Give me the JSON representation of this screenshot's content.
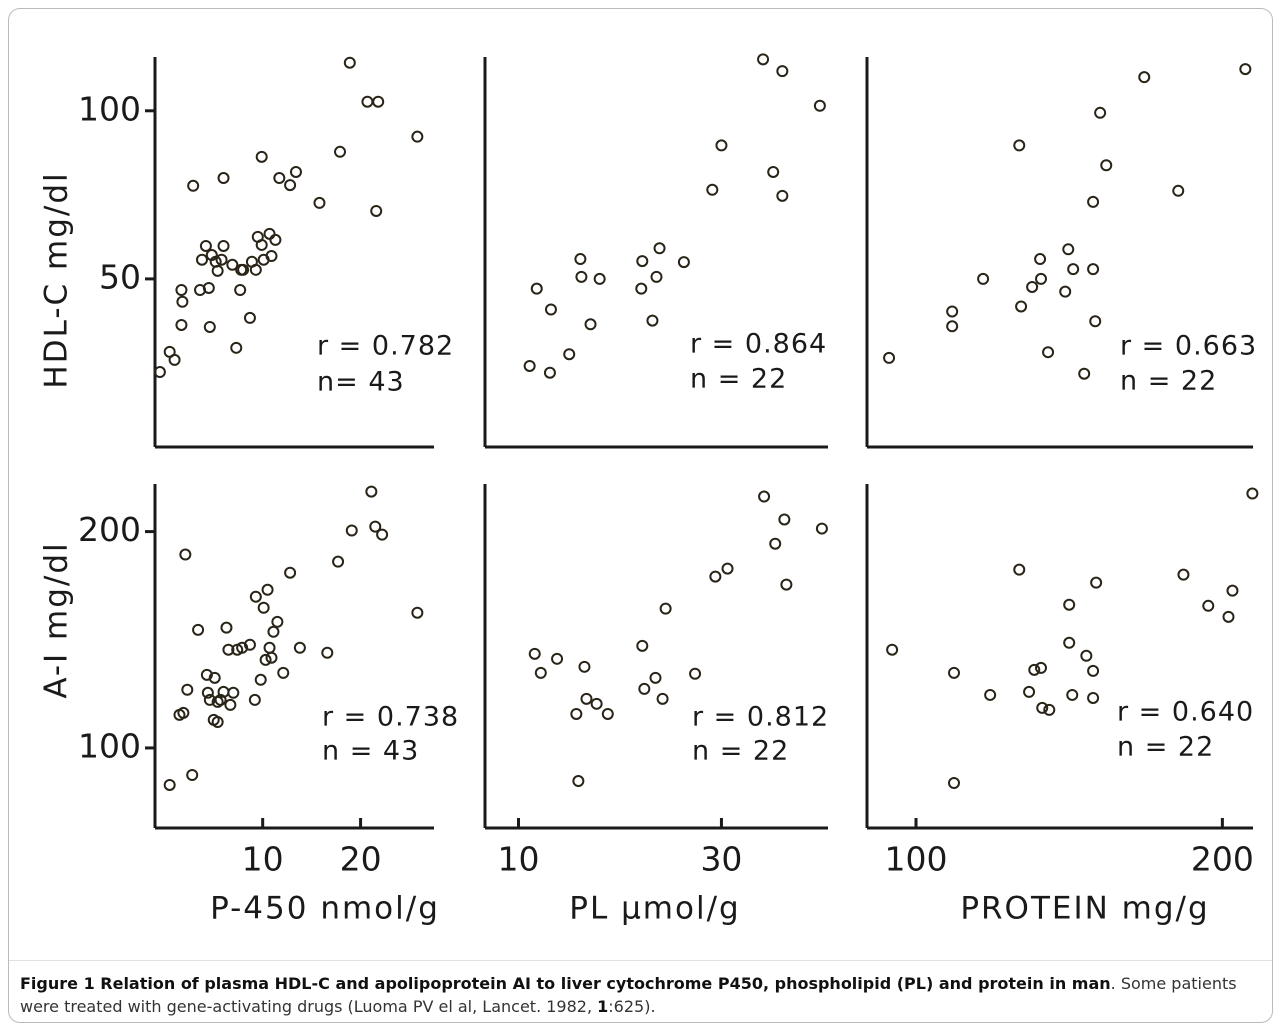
{
  "chart_data": [
    {
      "type": "scatter",
      "ylabel": "HDL-C  mg/dl",
      "color": "#2a2418",
      "x": [
        -0.5,
        0.5,
        1,
        1.7,
        1.8,
        1.7,
        2.9,
        3.6,
        3.8,
        4.2,
        4.5,
        4.8,
        5.2,
        4.6,
        5.4,
        6,
        6,
        6.9,
        7.3,
        7.7,
        8,
        8.7,
        8.9,
        9.3,
        9.9,
        9.5,
        9.9,
        10.1,
        10.7,
        10.9,
        11.3,
        11.7,
        12.8,
        13.4,
        15.8,
        17.9,
        18.9,
        20.7,
        21.8,
        21.6,
        25.8,
        5.8,
        7.8
      ],
      "values": [
        22.3,
        28.3,
        25.9,
        46.7,
        43.2,
        36.3,
        77.7,
        46.7,
        55.7,
        59.8,
        47.3,
        57.1,
        55.1,
        35.7,
        52.4,
        80,
        59.8,
        54.2,
        29.5,
        46.7,
        52.7,
        38.4,
        55.1,
        52.7,
        86.3,
        62.5,
        60.1,
        55.7,
        63.4,
        56.8,
        61.6,
        80,
        77.9,
        81.8,
        72.6,
        87.8,
        114.3,
        102.7,
        102.7,
        70.2,
        92.3,
        55.7,
        52.7
      ],
      "xlim": [
        -1,
        27.5
      ],
      "ylim": [
        0,
        116
      ],
      "yticks": [
        50,
        100
      ],
      "annotations": [
        "r = 0.782",
        "n= 43"
      ]
    },
    {
      "type": "scatter",
      "color": "#2a2418",
      "x": [
        11.8,
        11.1,
        13.1,
        13.2,
        15,
        16.1,
        16.2,
        17.1,
        18,
        22.2,
        22.1,
        23.2,
        23.6,
        23.9,
        26.3,
        29.1,
        30,
        34.1,
        36,
        35.1,
        36,
        39.7
      ],
      "values": [
        47.1,
        24.1,
        22.1,
        40.9,
        27.6,
        55.9,
        50.6,
        36.5,
        50,
        55.3,
        47.1,
        37.6,
        50.6,
        59.1,
        55,
        76.5,
        89.7,
        115.3,
        111.8,
        81.8,
        74.7,
        101.5
      ],
      "xlim": [
        6.7,
        40.5
      ],
      "ylim": [
        0,
        116
      ],
      "annotations": [
        "r = 0.864",
        "n = 22"
      ]
    },
    {
      "type": "scatter",
      "color": "#2a2418",
      "x": [
        91.2,
        111.8,
        111.8,
        121.9,
        133.7,
        134.3,
        137.9,
        140.5,
        140.8,
        143.1,
        148.7,
        149.7,
        151.3,
        154.9,
        157.8,
        157.8,
        158.5,
        160.1,
        162.1,
        174.5,
        185.6,
        207.5
      ],
      "values": [
        26.5,
        40.3,
        35.9,
        50,
        89.7,
        41.8,
        47.6,
        55.9,
        50,
        28.2,
        46.2,
        58.8,
        52.9,
        21.8,
        52.9,
        72.9,
        37.4,
        99.4,
        83.8,
        110,
        76.2,
        112.4
      ],
      "xlim": [
        84,
        210
      ],
      "ylim": [
        0,
        116
      ],
      "annotations": [
        "r = 0.663",
        "n = 22"
      ]
    },
    {
      "type": "scatter",
      "ylabel": "A-I  mg/dl",
      "xlabel": "P-450  nmol/g",
      "color": "#2a2418",
      "x": [
        0.5,
        1.5,
        1.9,
        2.1,
        2.3,
        2.8,
        3.4,
        4.3,
        4.4,
        4.6,
        5,
        5.1,
        5.4,
        5.4,
        5.7,
        6,
        6.3,
        6.5,
        6.7,
        7,
        7.4,
        7.9,
        8.7,
        9.2,
        9.3,
        9.8,
        10.1,
        10.3,
        10.5,
        10.7,
        10.9,
        11.1,
        11.5,
        12.1,
        12.8,
        13.8,
        16.6,
        17.7,
        19.1,
        21.1,
        21.5,
        22.2,
        25.8
      ],
      "values": [
        82.9,
        115.3,
        116.2,
        189.4,
        126.9,
        87.5,
        154.6,
        133.8,
        125.5,
        122.2,
        113,
        132.4,
        112,
        121.3,
        122.2,
        125.9,
        155.6,
        145.4,
        119.9,
        125.5,
        145.4,
        146.3,
        147.7,
        122.2,
        169.9,
        131.5,
        164.8,
        140.7,
        173.1,
        146.3,
        141.7,
        153.7,
        158.3,
        134.7,
        181,
        146.3,
        144,
        186.1,
        200.5,
        218.5,
        202.3,
        198.6,
        162.5
      ],
      "xlim": [
        -1,
        27.5
      ],
      "ylim": [
        63,
        222
      ],
      "yticks": [
        100,
        200
      ],
      "xticks": [
        10,
        20
      ],
      "annotations": [
        "r = 0.738",
        "n = 43"
      ]
    },
    {
      "type": "scatter",
      "xlabel": "PL  µmol/g",
      "color": "#2a2418",
      "x": [
        11.6,
        12.2,
        13.8,
        16.5,
        15.7,
        16.7,
        17.7,
        18.8,
        15.9,
        22.2,
        22.4,
        23.5,
        24.2,
        24.5,
        27.4,
        29.4,
        30.6,
        34.2,
        36.2,
        35.3,
        36.4,
        39.9
      ],
      "values": [
        143.5,
        134.7,
        141.2,
        137.5,
        115.7,
        122.7,
        120.4,
        115.7,
        84.7,
        147.2,
        127.3,
        132.4,
        122.7,
        164.4,
        134.3,
        179.2,
        182.9,
        216.2,
        205.6,
        194.4,
        175.5,
        201.4
      ],
      "xlim": [
        6.7,
        40.5
      ],
      "ylim": [
        63,
        222
      ],
      "xticks": [
        10,
        30
      ],
      "annotations": [
        "r = 0.812",
        "n = 22"
      ]
    },
    {
      "type": "scatter",
      "xlabel": "PROTEIN  mg/g",
      "color": "#2a2418",
      "x": [
        92.2,
        112.4,
        112.4,
        124.2,
        133.7,
        136.9,
        138.6,
        140.8,
        141.2,
        143.5,
        150,
        150,
        151,
        155.6,
        157.8,
        157.8,
        158.8,
        187.3,
        195.4,
        202,
        203.3,
        209.8
      ],
      "values": [
        145.4,
        134.7,
        83.8,
        124.5,
        182.4,
        125.9,
        136.1,
        137,
        118.5,
        117.6,
        166.2,
        148.6,
        124.5,
        142.6,
        135.6,
        123.1,
        176.4,
        180.1,
        165.7,
        160.6,
        172.7,
        217.6
      ],
      "xlim": [
        84,
        210
      ],
      "ylim": [
        63,
        222
      ],
      "xticks": [
        100,
        200
      ],
      "annotations": [
        "r = 0.640",
        "n = 22"
      ]
    }
  ],
  "caption": {
    "title": "Figure 1 Relation of plasma HDL-C and apolipoprotein AI to liver cytochrome P450, phospholipid (PL) and protein in man",
    "text": ". Some patients were treated with gene-activating drugs (Luoma PV el al, Lancet. 1982, ",
    "volume": "1",
    "pages": ":625)."
  }
}
